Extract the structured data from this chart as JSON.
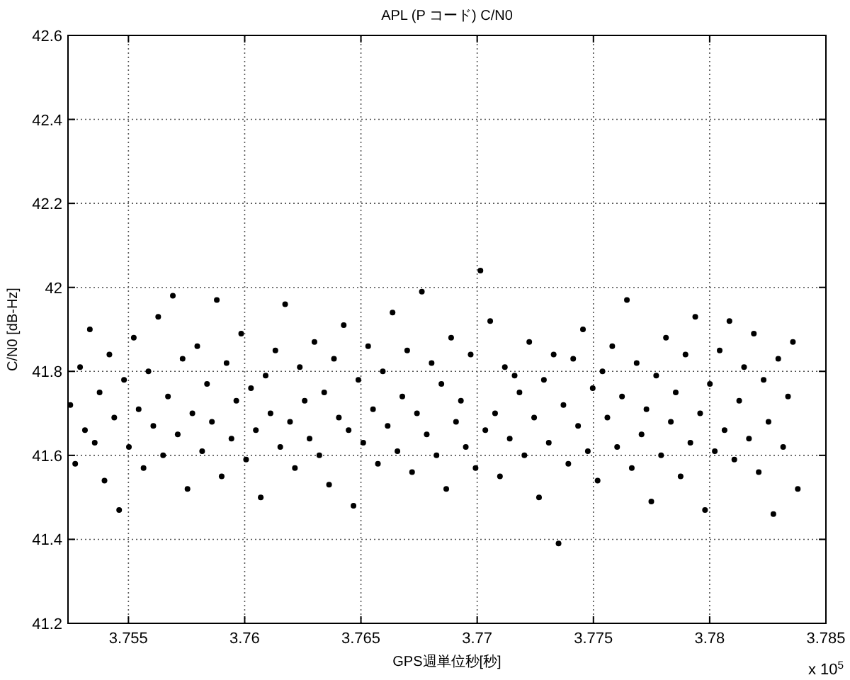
{
  "chart_data": {
    "type": "scatter",
    "title": "APL (P コード) C/N0",
    "xlabel": "GPS週単位秒[秒]",
    "ylabel": "C/N0 [dB-Hz]",
    "annotations": [
      "x 10$^{5}$"
    ],
    "xlim": [
      3.7524,
      3.785
    ],
    "ylim": [
      41.2,
      42.6
    ],
    "xticks": [
      3.755,
      3.76,
      3.765,
      3.77,
      3.775,
      3.78,
      3.785
    ],
    "yticks": [
      41.2,
      41.4,
      41.6,
      41.8,
      42,
      42.2,
      42.4,
      42.6
    ],
    "grid": true,
    "marker": "circle",
    "series": [
      {
        "color": "#000000",
        "x": [
          3.7525,
          3.75271,
          3.75292,
          3.75313,
          3.75334,
          3.75355,
          3.75376,
          3.75397,
          3.75418,
          3.75439,
          3.7546,
          3.75481,
          3.75502,
          3.75523,
          3.75544,
          3.75565,
          3.75586,
          3.75607,
          3.75628,
          3.75649,
          3.7567,
          3.75691,
          3.75712,
          3.75733,
          3.75754,
          3.75775,
          3.75796,
          3.75817,
          3.75838,
          3.75859,
          3.7588,
          3.75901,
          3.75922,
          3.75943,
          3.75964,
          3.75985,
          3.76006,
          3.76027,
          3.76048,
          3.76069,
          3.7609,
          3.76111,
          3.76132,
          3.76153,
          3.76174,
          3.76195,
          3.76216,
          3.76237,
          3.76258,
          3.76279,
          3.763,
          3.76321,
          3.76342,
          3.76363,
          3.76384,
          3.76405,
          3.76426,
          3.76447,
          3.76468,
          3.76489,
          3.7651,
          3.76531,
          3.76552,
          3.76573,
          3.76594,
          3.76615,
          3.76636,
          3.76657,
          3.76678,
          3.76699,
          3.7672,
          3.76741,
          3.76762,
          3.76783,
          3.76804,
          3.76825,
          3.76846,
          3.76867,
          3.76888,
          3.76909,
          3.7693,
          3.76951,
          3.76972,
          3.76993,
          3.77014,
          3.77035,
          3.77056,
          3.77077,
          3.77098,
          3.77119,
          3.7714,
          3.77161,
          3.77182,
          3.77203,
          3.77224,
          3.77245,
          3.77266,
          3.77287,
          3.77308,
          3.77329,
          3.7735,
          3.77371,
          3.77392,
          3.77413,
          3.77434,
          3.77455,
          3.77476,
          3.77497,
          3.77518,
          3.77539,
          3.7756,
          3.77581,
          3.77602,
          3.77623,
          3.77644,
          3.77665,
          3.77686,
          3.77707,
          3.77728,
          3.77749,
          3.7777,
          3.77791,
          3.77812,
          3.77833,
          3.77854,
          3.77875,
          3.77896,
          3.77917,
          3.77938,
          3.77959,
          3.7798,
          3.78001,
          3.78022,
          3.78043,
          3.78064,
          3.78085,
          3.78106,
          3.78127,
          3.78148,
          3.78169,
          3.7819,
          3.78211,
          3.78232,
          3.78253,
          3.78274,
          3.78295,
          3.78316,
          3.78337,
          3.78358,
          3.78379
        ],
        "values": [
          41.72,
          41.58,
          41.81,
          41.66,
          41.9,
          41.63,
          41.75,
          41.54,
          41.84,
          41.69,
          41.47,
          41.78,
          41.62,
          41.88,
          41.71,
          41.57,
          41.8,
          41.67,
          41.93,
          41.6,
          41.74,
          41.98,
          41.65,
          41.83,
          41.52,
          41.7,
          41.86,
          41.61,
          41.77,
          41.68,
          41.97,
          41.55,
          41.82,
          41.64,
          41.73,
          41.89,
          41.59,
          41.76,
          41.66,
          41.5,
          41.79,
          41.7,
          41.85,
          41.62,
          41.96,
          41.68,
          41.57,
          41.81,
          41.73,
          41.64,
          41.87,
          41.6,
          41.75,
          41.53,
          41.83,
          41.69,
          41.91,
          41.66,
          41.48,
          41.78,
          41.63,
          41.86,
          41.71,
          41.58,
          41.8,
          41.67,
          41.94,
          41.61,
          41.74,
          41.85,
          41.56,
          41.7,
          41.99,
          41.65,
          41.82,
          41.6,
          41.77,
          41.52,
          41.88,
          41.68,
          41.73,
          41.62,
          41.84,
          41.57,
          42.04,
          41.66,
          41.92,
          41.7,
          41.55,
          41.81,
          41.64,
          41.79,
          41.75,
          41.6,
          41.87,
          41.69,
          41.5,
          41.78,
          41.63,
          41.84,
          41.39,
          41.72,
          41.58,
          41.83,
          41.67,
          41.9,
          41.61,
          41.76,
          41.54,
          41.8,
          41.69,
          41.86,
          41.62,
          41.74,
          41.97,
          41.57,
          41.82,
          41.65,
          41.71,
          41.49,
          41.79,
          41.6,
          41.88,
          41.68,
          41.75,
          41.55,
          41.84,
          41.63,
          41.93,
          41.7,
          41.47,
          41.77,
          41.61,
          41.85,
          41.66,
          41.92,
          41.59,
          41.73,
          41.81,
          41.64,
          41.89,
          41.56,
          41.78,
          41.68,
          41.46,
          41.83,
          41.62,
          41.74,
          41.87,
          41.52
        ]
      }
    ]
  }
}
